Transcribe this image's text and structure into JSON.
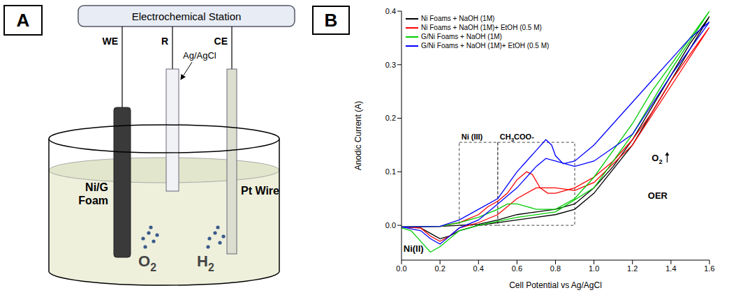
{
  "diagram": {
    "panel_label": "A",
    "station": "Electrochemical Station",
    "leads": [
      "WE",
      "R",
      "CE"
    ],
    "reference_label": "Ag/AgCl",
    "working_electrode": "Ni/G Foam",
    "counter_electrode": "Pt Wire",
    "gases": [
      "O2",
      "H2"
    ]
  },
  "chart_data": {
    "panel_label": "B",
    "type": "line",
    "x_label": "Cell Potential vs Ag/AgCl",
    "y_label": "Anodic Current (A)",
    "xlim": [
      0,
      1.6
    ],
    "ylim": [
      -0.065,
      0.4
    ],
    "xticks": [
      {
        "value": 0,
        "label": "0.0"
      },
      {
        "value": 0.2,
        "label": "0.2"
      },
      {
        "value": 0.4,
        "label": "0.4"
      },
      {
        "value": 0.6,
        "label": "0.6"
      },
      {
        "value": 0.8,
        "label": "0.8"
      },
      {
        "value": 1,
        "label": "1.0"
      },
      {
        "value": 1.2,
        "label": "1.2"
      },
      {
        "value": 1.4,
        "label": "1.4"
      },
      {
        "value": 1.6,
        "label": "1.6"
      }
    ],
    "yticks": [
      {
        "value": 0,
        "label": "0.0"
      },
      0.1,
      0.2,
      0.3,
      0.4
    ],
    "grid": false,
    "legend": "upper left",
    "series": [
      {
        "name": "Ni Foams + NaOH (1M)",
        "color": "#000000",
        "x": [
          0,
          0.2,
          0.3,
          0.4,
          0.5,
          0.6,
          0.7,
          0.8,
          0.9,
          1.0,
          1.1,
          1.2,
          1.3,
          1.4,
          1.5,
          1.6,
          1.4,
          1.2,
          1.0,
          0.9,
          0.8,
          0.6,
          0.4,
          0.3,
          0.25,
          0.2,
          0.15,
          0.1,
          0
        ],
        "values": [
          -0.003,
          -0.002,
          0.0,
          0.002,
          0.01,
          0.02,
          0.025,
          0.03,
          0.04,
          0.07,
          0.11,
          0.16,
          0.22,
          0.28,
          0.34,
          0.39,
          0.27,
          0.15,
          0.06,
          0.03,
          0.02,
          0.01,
          0.0,
          -0.01,
          -0.02,
          -0.025,
          -0.015,
          -0.005,
          -0.003
        ]
      },
      {
        "name": "Ni Foams + NaOH (1M)+ EtOH (0.5 M)",
        "color": "#ff0000",
        "x": [
          0,
          0.2,
          0.3,
          0.4,
          0.45,
          0.5,
          0.55,
          0.6,
          0.65,
          0.68,
          0.72,
          0.76,
          0.8,
          0.9,
          1.0,
          1.1,
          1.2,
          1.3,
          1.4,
          1.5,
          1.6,
          1.4,
          1.2,
          1.0,
          0.9,
          0.8,
          0.7,
          0.6,
          0.5,
          0.4,
          0.3,
          0.25,
          0.2,
          0.15,
          0.1,
          0
        ],
        "values": [
          -0.003,
          -0.002,
          0.005,
          0.02,
          0.035,
          0.045,
          0.06,
          0.085,
          0.1,
          0.095,
          0.07,
          0.06,
          0.06,
          0.07,
          0.09,
          0.12,
          0.16,
          0.21,
          0.27,
          0.32,
          0.37,
          0.26,
          0.15,
          0.08,
          0.065,
          0.07,
          0.07,
          0.05,
          0.02,
          0.005,
          -0.005,
          -0.02,
          -0.03,
          -0.02,
          -0.005,
          -0.003
        ]
      },
      {
        "name": "G/Ni Foams + NaOH (1M)",
        "color": "#00cc00",
        "x": [
          0,
          0.2,
          0.3,
          0.4,
          0.5,
          0.55,
          0.6,
          0.65,
          0.7,
          0.8,
          0.9,
          1.0,
          1.1,
          1.2,
          1.3,
          1.4,
          1.5,
          1.6,
          1.4,
          1.2,
          1.0,
          0.8,
          0.6,
          0.4,
          0.3,
          0.2,
          0.15,
          0.1,
          0.05,
          0
        ],
        "values": [
          -0.003,
          -0.002,
          0.005,
          0.015,
          0.03,
          0.04,
          0.04,
          0.035,
          0.03,
          0.03,
          0.05,
          0.09,
          0.14,
          0.19,
          0.25,
          0.3,
          0.35,
          0.4,
          0.29,
          0.17,
          0.07,
          0.025,
          0.015,
          0.0,
          -0.01,
          -0.04,
          -0.05,
          -0.03,
          -0.01,
          -0.005
        ]
      },
      {
        "name": "G/Ni Foams + NaOH (1M)+ EtOH (0.5 M)",
        "color": "#0000ff",
        "x": [
          0,
          0.2,
          0.3,
          0.4,
          0.5,
          0.55,
          0.6,
          0.65,
          0.7,
          0.75,
          0.78,
          0.8,
          0.84,
          0.9,
          1.0,
          1.1,
          1.2,
          1.3,
          1.4,
          1.5,
          1.6,
          1.4,
          1.2,
          1.0,
          0.9,
          0.8,
          0.75,
          0.7,
          0.6,
          0.5,
          0.4,
          0.3,
          0.25,
          0.2,
          0.15,
          0.1,
          0
        ],
        "values": [
          -0.003,
          -0.002,
          0.01,
          0.03,
          0.05,
          0.075,
          0.1,
          0.12,
          0.14,
          0.16,
          0.15,
          0.13,
          0.115,
          0.12,
          0.15,
          0.19,
          0.23,
          0.27,
          0.31,
          0.35,
          0.38,
          0.28,
          0.17,
          0.12,
          0.11,
          0.12,
          0.125,
          0.11,
          0.07,
          0.04,
          0.01,
          -0.005,
          -0.02,
          -0.035,
          -0.025,
          -0.01,
          -0.003
        ]
      }
    ],
    "regions": [
      {
        "label": "Ni (III)",
        "x": [
          0.3,
          0.5
        ],
        "y": [
          0.0,
          0.155
        ]
      },
      {
        "label": "CH3COO-",
        "x": [
          0.5,
          0.9
        ],
        "y": [
          0.0,
          0.155
        ]
      }
    ],
    "annotations": [
      {
        "text": "O2",
        "x": 1.3,
        "y": 0.12,
        "arrow": "up"
      },
      {
        "text": "OER",
        "x": 1.28,
        "y": 0.05
      },
      {
        "text": "Ni(II)",
        "x": 0.01,
        "y": -0.05
      }
    ]
  }
}
